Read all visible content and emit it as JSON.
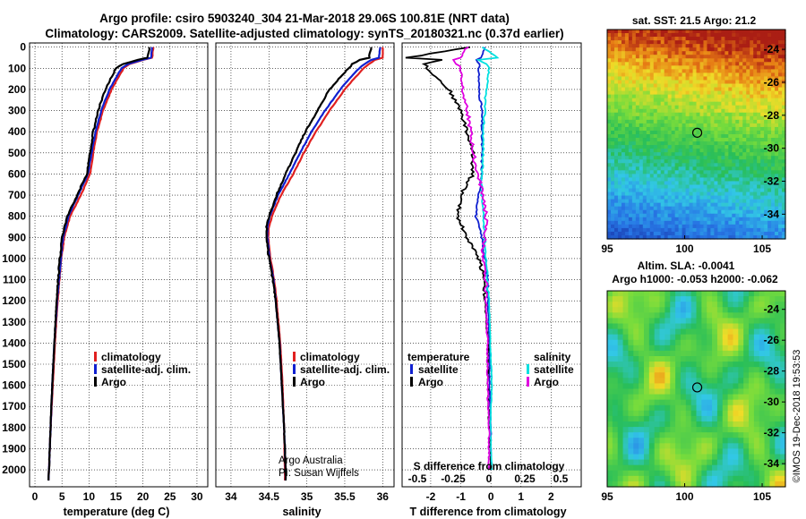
{
  "header": {
    "line1": "Argo profile: csiro 5903240_304 21-Mar-2018 29.06S 100.81E (NRT data)",
    "line2": "Climatology: CARS2009. Satellite-adjusted climatology: synTS_20180321.nc (0.37d earlier)"
  },
  "depth_ticks": [
    "0",
    "100",
    "200",
    "300",
    "400",
    "500",
    "600",
    "700",
    "800",
    "900",
    "1000",
    "1100",
    "1200",
    "1300",
    "1400",
    "1500",
    "1600",
    "1700",
    "1800",
    "1900",
    "2000"
  ],
  "colors": {
    "climatology": "#e02020",
    "satellite": "#1020d0",
    "argo": "#000000",
    "sat_salinity": "#00e0e0",
    "argo_salinity": "#e000e0"
  },
  "chart_data": [
    {
      "type": "line",
      "panel": "temperature",
      "xlabel": "temperature (deg C)",
      "ylabel": "",
      "xlim": [
        -1,
        32
      ],
      "ylim": [
        2080,
        -20
      ],
      "xticks": [
        "0",
        "5",
        "10",
        "15",
        "20",
        "25",
        "30"
      ],
      "legend": [
        "climatology",
        "satellite-adj. clim.",
        "Argo"
      ],
      "legend_position": "lower-right",
      "depth": [
        0,
        50,
        60,
        80,
        100,
        150,
        200,
        300,
        400,
        500,
        600,
        700,
        800,
        900,
        1000,
        1200,
        1400,
        1600,
        1800,
        2000,
        2050
      ],
      "series": [
        {
          "name": "climatology",
          "values": [
            21.9,
            21.7,
            20,
            17.5,
            16.4,
            15.3,
            14.2,
            12.6,
            11.5,
            10.8,
            10.2,
            8.5,
            6.5,
            5.4,
            4.9,
            4.2,
            3.7,
            3.3,
            2.9,
            2.6,
            2.5
          ]
        },
        {
          "name": "satellite-adj. clim.",
          "values": [
            21.7,
            21.5,
            19.8,
            17.3,
            16.0,
            14.9,
            13.8,
            12.3,
            11.2,
            10.5,
            9.8,
            8.0,
            6.2,
            5.2,
            4.8,
            4.1,
            3.6,
            3.2,
            2.9,
            2.6,
            2.5
          ]
        },
        {
          "name": "Argo",
          "values": [
            21.2,
            20.8,
            19,
            16.3,
            15.0,
            14.0,
            13.0,
            11.7,
            10.8,
            10.2,
            9.6,
            7.8,
            6.0,
            5.0,
            4.6,
            4.0,
            3.6,
            3.2,
            2.9,
            2.6,
            2.5
          ]
        }
      ]
    },
    {
      "type": "line",
      "panel": "salinity",
      "xlabel": "salinity",
      "ylabel": "",
      "xlim": [
        33.8,
        36.15
      ],
      "ylim": [
        2080,
        -20
      ],
      "xticks": [
        "34",
        "34.5",
        "35",
        "35.5",
        "36"
      ],
      "legend": [
        "climatology",
        "satellite-adj. clim.",
        "Argo"
      ],
      "legend_position": "lower-right",
      "annotation": [
        "Argo Australia",
        "PI: Susan Wijffels"
      ],
      "depth": [
        0,
        50,
        60,
        80,
        100,
        150,
        200,
        300,
        400,
        500,
        600,
        700,
        800,
        850,
        900,
        1000,
        1100,
        1200,
        1400,
        1600,
        1800,
        2000,
        2050
      ],
      "series": [
        {
          "name": "climatology",
          "values": [
            36.0,
            36.0,
            35.9,
            35.82,
            35.75,
            35.62,
            35.5,
            35.3,
            35.12,
            34.96,
            34.82,
            34.66,
            34.54,
            34.5,
            34.49,
            34.52,
            34.57,
            34.6,
            34.65,
            34.68,
            34.7,
            34.71,
            34.71
          ]
        },
        {
          "name": "satellite-adj. clim.",
          "values": [
            35.97,
            35.95,
            35.85,
            35.76,
            35.69,
            35.56,
            35.44,
            35.24,
            35.06,
            34.91,
            34.77,
            34.62,
            34.51,
            34.48,
            34.48,
            34.51,
            34.56,
            34.59,
            34.64,
            34.67,
            34.7,
            34.72,
            34.72
          ]
        },
        {
          "name": "Argo",
          "values": [
            35.85,
            35.82,
            35.7,
            35.6,
            35.55,
            35.42,
            35.3,
            35.14,
            34.98,
            34.85,
            34.72,
            34.6,
            34.5,
            34.47,
            34.47,
            34.5,
            34.55,
            34.59,
            34.64,
            34.67,
            34.7,
            34.72,
            34.72
          ]
        }
      ]
    },
    {
      "type": "line",
      "panel": "difference",
      "xlabel": "T difference from climatology",
      "xlabel_top": "S difference from climatology",
      "xlim": [
        -2.95,
        3.0
      ],
      "ylim": [
        2080,
        -20
      ],
      "xticks": [
        "-2",
        "-1",
        "0",
        "1",
        "2"
      ],
      "xticks_top": [
        "-0.5",
        "-0.25",
        "0",
        "0.25",
        "0.5"
      ],
      "legend_left_title": "temperature",
      "legend_right_title": "salinity",
      "legend_left": [
        "satellite",
        "Argo"
      ],
      "legend_right": [
        "satellite",
        "Argo"
      ],
      "depth": [
        0,
        50,
        60,
        80,
        100,
        200,
        300,
        400,
        500,
        600,
        700,
        800,
        900,
        1000,
        1100,
        1200,
        1400,
        1600,
        1800,
        2000
      ],
      "series": [
        {
          "name": "temperature satellite",
          "values": [
            -0.2,
            -0.3,
            -0.5,
            -0.4,
            -0.4,
            -0.4,
            -0.3,
            -0.3,
            -0.3,
            -0.3,
            -0.4,
            -0.5,
            -0.3,
            -0.2,
            -0.1,
            -0.1,
            -0.05,
            -0.05,
            0,
            0
          ]
        },
        {
          "name": "temperature Argo",
          "values": [
            -0.7,
            -2.8,
            -1.6,
            -2.2,
            -2.1,
            -1.4,
            -1.0,
            -0.8,
            -0.6,
            -0.6,
            -1.0,
            -1.1,
            -0.8,
            -0.4,
            -0.2,
            -0.2,
            -0.1,
            -0.1,
            -0.05,
            0
          ]
        },
        {
          "name": "salinity satellite",
          "values": [
            -0.05,
            0.06,
            -0.08,
            -0.02,
            0,
            -0.02,
            -0.03,
            -0.04,
            -0.04,
            -0.05,
            -0.05,
            -0.04,
            -0.03,
            -0.02,
            -0.01,
            0,
            0.01,
            0.02,
            0.01,
            0.02
          ]
        },
        {
          "name": "salinity Argo",
          "values": [
            -0.15,
            -0.2,
            -0.25,
            -0.22,
            -0.2,
            -0.18,
            -0.15,
            -0.13,
            -0.11,
            -0.08,
            -0.04,
            -0.02,
            -0.03,
            -0.05,
            -0.02,
            -0.02,
            -0.01,
            -0.01,
            0,
            0
          ]
        }
      ]
    },
    {
      "type": "heatmap",
      "panel": "sst-map",
      "title": "sat. SST: 21.5 Argo: 21.2",
      "xlim": [
        95,
        106.5
      ],
      "ylim": [
        -35.5,
        -22.8
      ],
      "xticks": [
        "95",
        "100",
        "105"
      ],
      "yticks": [
        "-24",
        "-26",
        "-28",
        "-30",
        "-32",
        "-34"
      ],
      "float_position": [
        100.81,
        -29.06
      ]
    },
    {
      "type": "heatmap",
      "panel": "sla-map",
      "title": "Altim. SLA: -0.0041",
      "subtitle": "Argo h1000: -0.053 h2000: -0.062",
      "xlim": [
        95,
        106.5
      ],
      "ylim": [
        -35.5,
        -22.8
      ],
      "xticks": [
        "95",
        "100",
        "105"
      ],
      "yticks": [
        "-24",
        "-26",
        "-28",
        "-30",
        "-32",
        "-34"
      ],
      "float_position": [
        100.81,
        -29.06
      ]
    }
  ],
  "credit": "©IMOS 19-Dec-2018 19:53:53"
}
